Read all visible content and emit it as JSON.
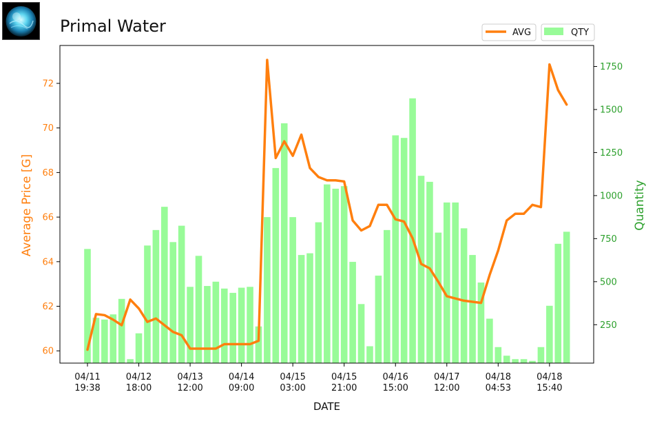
{
  "page": {
    "title": "Primal Water",
    "icon": "primal-water-orb-icon"
  },
  "legend": {
    "avg_label": "AVG",
    "qty_label": "QTY"
  },
  "colors": {
    "avg_line": "#ff7f0e",
    "qty_bars": "#98fb98",
    "left_axis": "#ff7f0e",
    "right_axis": "#2ca02c"
  },
  "chart_data": {
    "type": "bar+line",
    "title": "Primal Water",
    "xlabel": "DATE",
    "ylabel_left": "Average Price [G]",
    "ylabel_right": "Quantity",
    "ylim_left": [
      59.45,
      73.7
    ],
    "ylim_right": [
      27,
      1872
    ],
    "yticks_left": [
      60,
      62,
      64,
      66,
      68,
      70,
      72
    ],
    "yticks_right": [
      250,
      500,
      750,
      1000,
      1250,
      1500,
      1750
    ],
    "xtick_labels": [
      [
        "04/11",
        "19:38"
      ],
      [
        "04/12",
        "18:00"
      ],
      [
        "04/13",
        "12:00"
      ],
      [
        "04/14",
        "09:00"
      ],
      [
        "04/15",
        "03:00"
      ],
      [
        "04/15",
        "21:00"
      ],
      [
        "04/16",
        "15:00"
      ],
      [
        "04/17",
        "12:00"
      ],
      [
        "04/18",
        "04:53"
      ],
      [
        "04/18",
        "15:40"
      ]
    ],
    "xtick_positions": [
      0,
      6,
      12,
      18,
      24,
      30,
      36,
      42,
      48,
      54
    ],
    "legend_position": "top-right, above plot",
    "series": [
      {
        "name": "QTY",
        "kind": "bar",
        "axis": "right",
        "values": [
          690,
          290,
          280,
          310,
          400,
          50,
          200,
          710,
          800,
          935,
          730,
          825,
          470,
          650,
          475,
          500,
          460,
          435,
          465,
          470,
          240,
          875,
          1160,
          1420,
          875,
          655,
          665,
          845,
          1065,
          1040,
          1055,
          615,
          370,
          125,
          535,
          800,
          1350,
          1335,
          1565,
          1115,
          1080,
          785,
          960,
          960,
          810,
          655,
          495,
          285,
          120,
          70,
          50,
          50,
          40,
          120,
          360,
          720,
          790
        ]
      },
      {
        "name": "AVG",
        "kind": "line",
        "axis": "left",
        "values": [
          60.05,
          61.65,
          61.6,
          61.4,
          61.15,
          62.3,
          61.9,
          61.3,
          61.45,
          61.15,
          60.85,
          60.7,
          60.1,
          60.1,
          60.1,
          60.1,
          60.3,
          60.3,
          60.3,
          60.3,
          60.45,
          73.05,
          68.65,
          69.4,
          68.75,
          69.7,
          68.2,
          67.8,
          67.65,
          67.65,
          67.6,
          65.85,
          65.4,
          65.6,
          66.55,
          66.55,
          65.9,
          65.8,
          65.05,
          63.9,
          63.7,
          63.1,
          62.45,
          62.35,
          62.25,
          62.2,
          62.15,
          63.4,
          64.5,
          65.85,
          66.15,
          66.15,
          66.55,
          66.45,
          72.85,
          71.7,
          71.05
        ]
      }
    ]
  }
}
